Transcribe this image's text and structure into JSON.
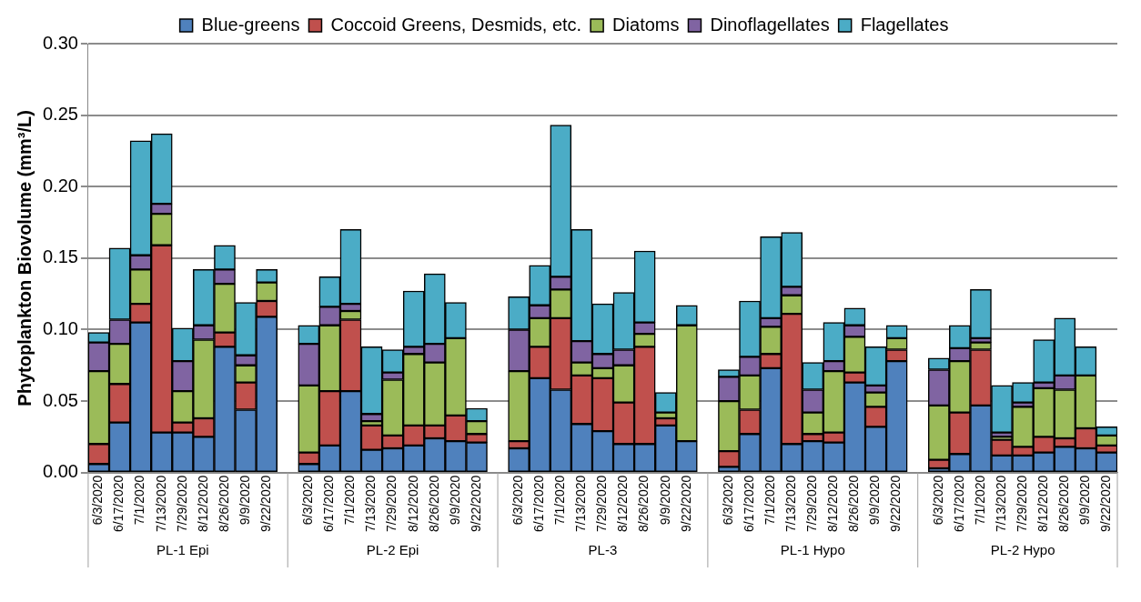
{
  "chart_data": {
    "type": "bar",
    "stacked": true,
    "ylabel": "Phytoplankton Biovolume (mm³/L)",
    "categories": [
      "6/3/2020",
      "6/17/2020",
      "7/1/2020",
      "7/13/2020",
      "7/29/2020",
      "8/12/2020",
      "8/26/2020",
      "9/9/2020",
      "9/22/2020",
      null,
      "6/3/2020",
      "6/17/2020",
      "7/1/2020",
      "7/13/2020",
      "7/29/2020",
      "8/12/2020",
      "8/26/2020",
      "9/9/2020",
      "9/22/2020",
      null,
      "6/3/2020",
      "6/17/2020",
      "7/1/2020",
      "7/13/2020",
      "7/29/2020",
      "8/12/2020",
      "8/26/2020",
      "9/9/2020",
      "9/22/2020",
      null,
      "6/3/2020",
      "6/17/2020",
      "7/1/2020",
      "7/13/2020",
      "7/29/2020",
      "8/12/2020",
      "8/26/2020",
      "9/9/2020",
      "9/22/2020",
      null,
      "6/3/2020",
      "6/17/2020",
      "7/1/2020",
      "7/13/2020",
      "7/29/2020",
      "8/12/2020",
      "8/26/2020",
      "9/9/2020",
      "9/22/2020"
    ],
    "series": [
      {
        "name": "Blue-greens",
        "color": "#4f81bd",
        "values": [
          0.006,
          0.035,
          0.105,
          0.028,
          0.028,
          0.025,
          0.088,
          0.044,
          0.109,
          null,
          0.006,
          0.019,
          0.057,
          0.016,
          0.017,
          0.019,
          0.024,
          0.022,
          0.021,
          null,
          0.017,
          0.066,
          0.058,
          0.034,
          0.029,
          0.02,
          0.02,
          0.033,
          0.022,
          null,
          0.004,
          0.027,
          0.073,
          0.02,
          0.022,
          0.021,
          0.063,
          0.032,
          0.078,
          null,
          0.003,
          0.013,
          0.047,
          0.012,
          0.012,
          0.014,
          0.018,
          0.017,
          0.014
        ]
      },
      {
        "name": "Coccoid Greens, Desmids, etc.",
        "color": "#c0504d",
        "values": [
          0.014,
          0.027,
          0.013,
          0.131,
          0.007,
          0.013,
          0.01,
          0.019,
          0.011,
          null,
          0.008,
          0.038,
          0.05,
          0.017,
          0.009,
          0.014,
          0.009,
          0.018,
          0.006,
          null,
          0.005,
          0.022,
          0.05,
          0.034,
          0.037,
          0.029,
          0.068,
          0.005,
          0,
          null,
          0.011,
          0.017,
          0.01,
          0.091,
          0.005,
          0.007,
          0.007,
          0.014,
          0.008,
          null,
          0.006,
          0.029,
          0.039,
          0.011,
          0.006,
          0.011,
          0.006,
          0.014,
          0.005
        ]
      },
      {
        "name": "Diatoms",
        "color": "#9bbb59",
        "values": [
          0.051,
          0.028,
          0.024,
          0.022,
          0.022,
          0.055,
          0.034,
          0.012,
          0.013,
          null,
          0.047,
          0.046,
          0.006,
          0.003,
          0.039,
          0.05,
          0.044,
          0.054,
          0.009,
          null,
          0.049,
          0.02,
          0.02,
          0.009,
          0.007,
          0.026,
          0.009,
          0.004,
          0.081,
          null,
          0.035,
          0.024,
          0.019,
          0.013,
          0.015,
          0.043,
          0.025,
          0.01,
          0.008,
          null,
          0.038,
          0.036,
          0.005,
          0.002,
          0.028,
          0.034,
          0.034,
          0.037,
          0.007
        ]
      },
      {
        "name": "Dinoflagellates",
        "color": "#8064a2",
        "values": [
          0.02,
          0.017,
          0.01,
          0.007,
          0.021,
          0.01,
          0.01,
          0.007,
          0,
          null,
          0.029,
          0.013,
          0.005,
          0.005,
          0.005,
          0.005,
          0.013,
          0,
          0,
          null,
          0.029,
          0.009,
          0.009,
          0.015,
          0.01,
          0.011,
          0.008,
          0,
          0,
          null,
          0.017,
          0.013,
          0.006,
          0.006,
          0.016,
          0.007,
          0.008,
          0.005,
          0,
          null,
          0.025,
          0.009,
          0.003,
          0.003,
          0.003,
          0.004,
          0.01,
          0,
          0
        ]
      },
      {
        "name": "Flagellates",
        "color": "#4bacc6",
        "values": [
          0.007,
          0.05,
          0.08,
          0.049,
          0.023,
          0.039,
          0.017,
          0.037,
          0.009,
          null,
          0.013,
          0.021,
          0.052,
          0.047,
          0.016,
          0.039,
          0.049,
          0.025,
          0.009,
          null,
          0.023,
          0.028,
          0.106,
          0.078,
          0.035,
          0.04,
          0.05,
          0.014,
          0.014,
          null,
          0.005,
          0.039,
          0.057,
          0.038,
          0.019,
          0.027,
          0.012,
          0.027,
          0.009,
          null,
          0.008,
          0.016,
          0.034,
          0.033,
          0.014,
          0.03,
          0.04,
          0.02,
          0.006
        ]
      }
    ],
    "ylim": [
      0,
      0.3
    ],
    "yticks": [
      {
        "value": 0,
        "label": "0.00"
      },
      {
        "value": 0.05,
        "label": "0.05"
      },
      {
        "value": 0.1,
        "label": "0.10"
      },
      {
        "value": 0.15,
        "label": "0.15"
      },
      {
        "value": 0.2,
        "label": "0.20"
      },
      {
        "value": 0.25,
        "label": "0.25"
      },
      {
        "value": 0.3,
        "label": "0.30"
      }
    ],
    "grid": "y",
    "legend": "top",
    "annotations": [
      "PL-1 Epi",
      "PL-2 Epi",
      "PL-3",
      "PL-1 Hypo",
      "PL-2 Hypo"
    ]
  }
}
